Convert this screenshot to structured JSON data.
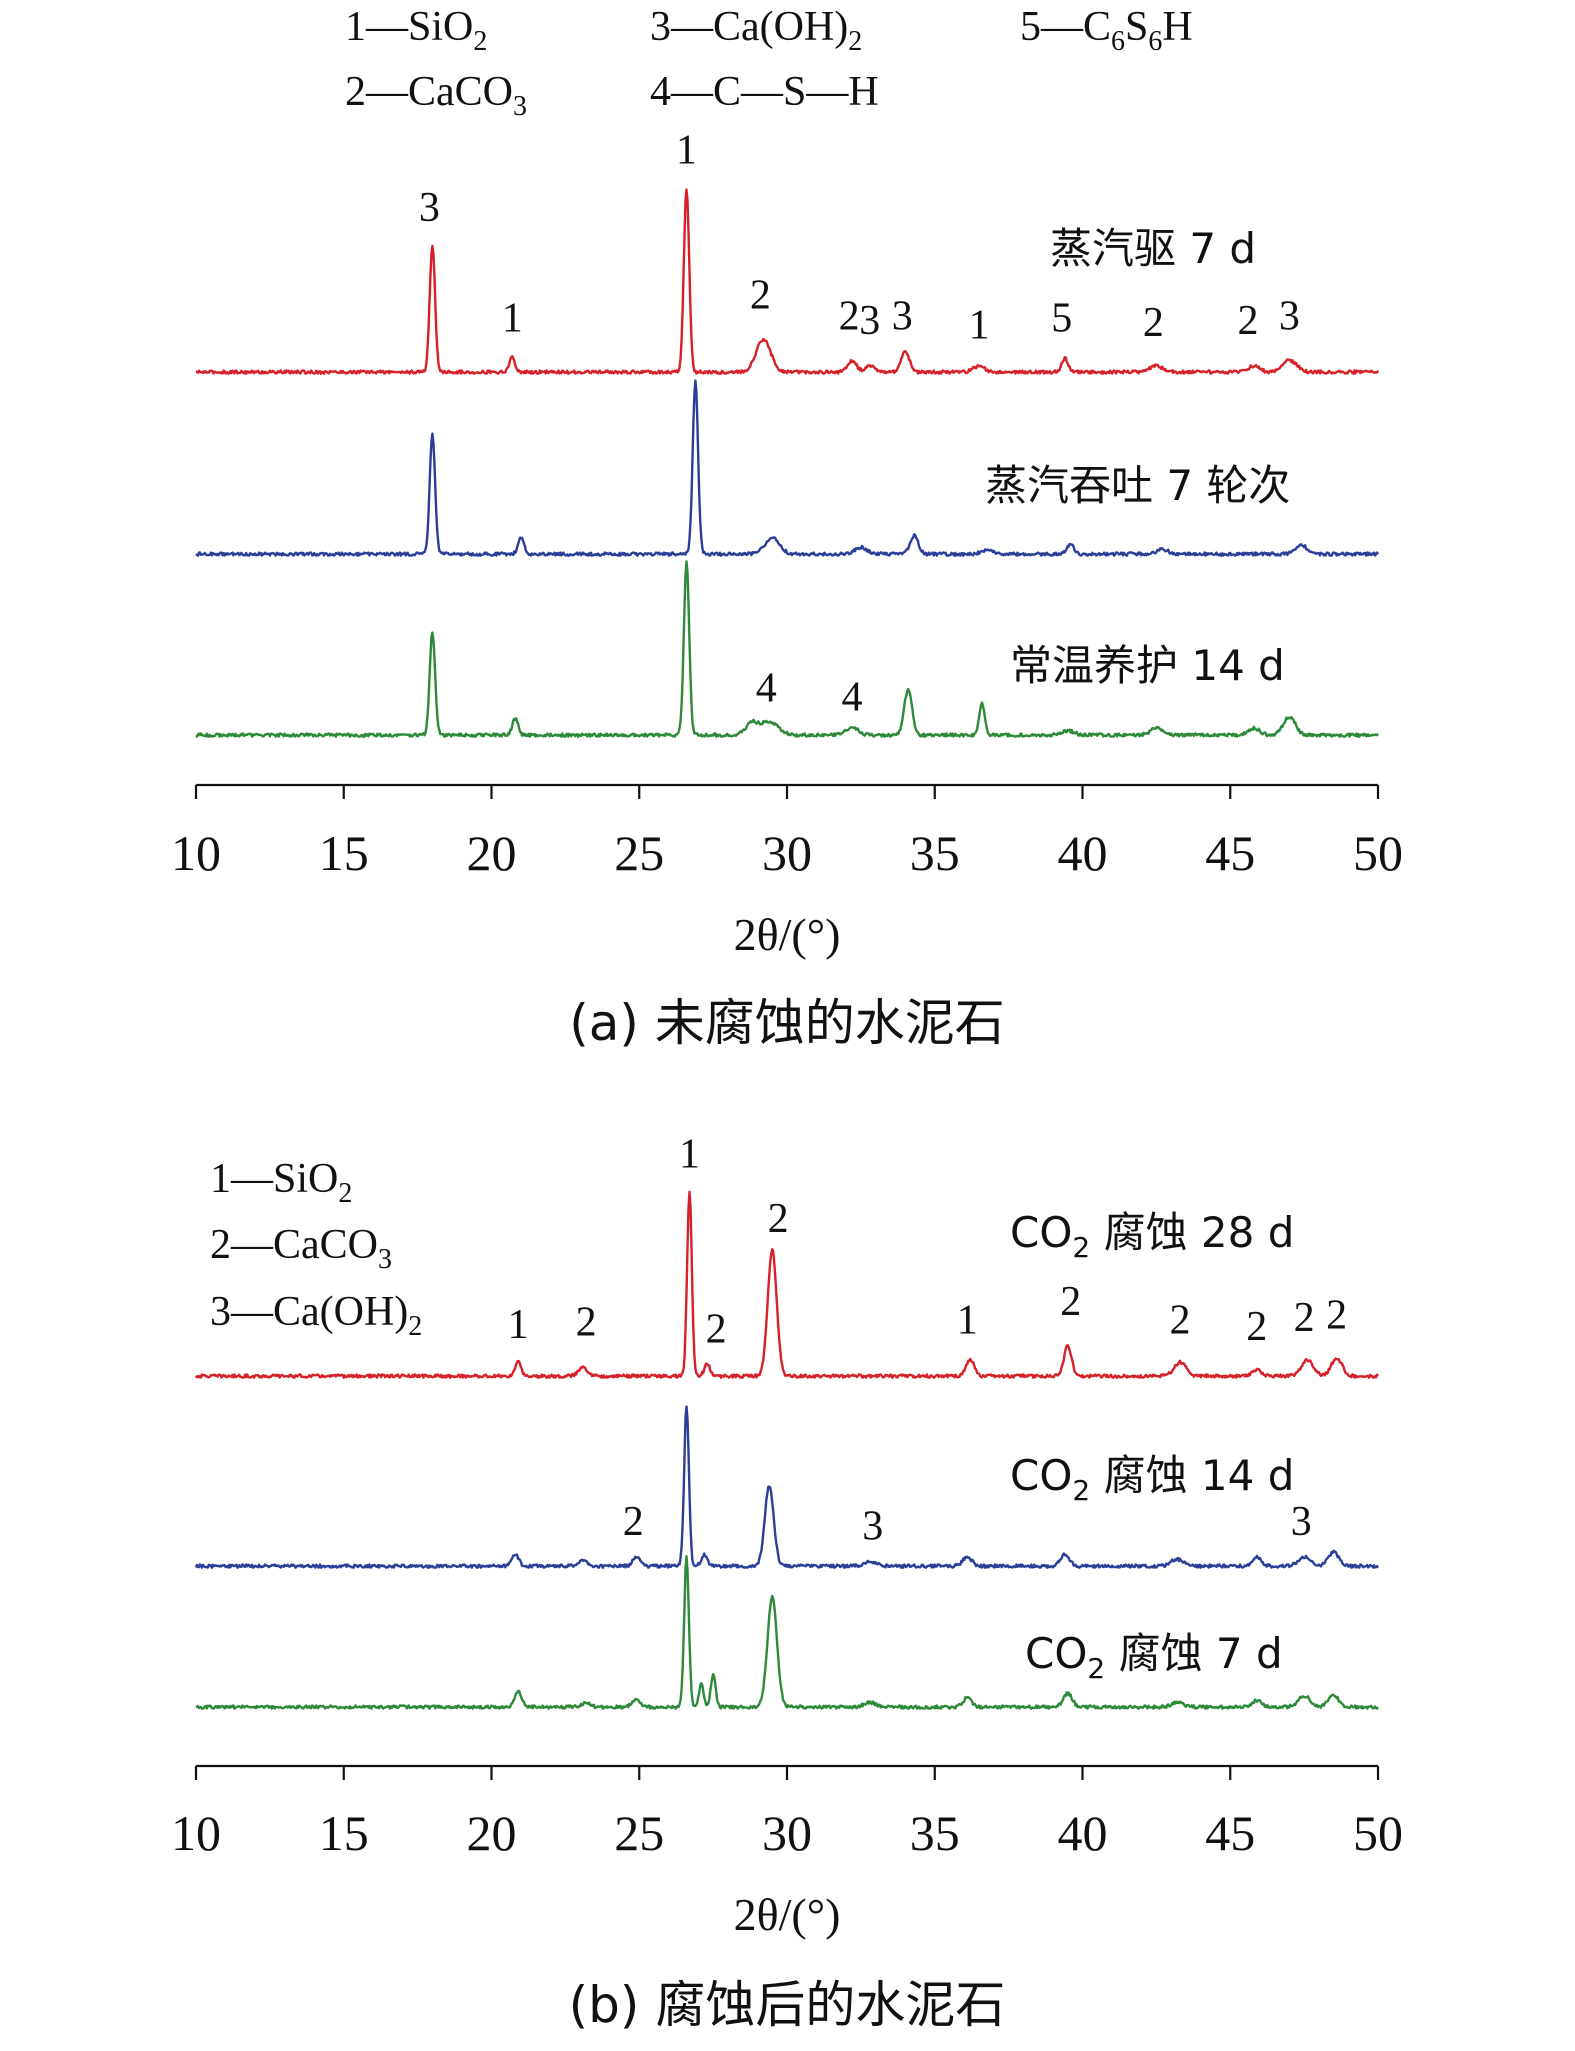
{
  "chart_data": [
    {
      "id": "a",
      "type": "line",
      "caption": "(a) 未腐蚀的水泥石",
      "xlabel": "2θ/(°)",
      "xlim": [
        10,
        50
      ],
      "x_ticks": [
        10,
        15,
        20,
        25,
        30,
        35,
        40,
        45,
        50
      ],
      "y_axis": "none",
      "grid": false,
      "legend": [
        {
          "num": "1",
          "formula": "SiO",
          "sub": "2",
          "rest": ""
        },
        {
          "num": "2",
          "formula": "CaCO",
          "sub": "3",
          "rest": ""
        },
        {
          "num": "3",
          "formula": "Ca(OH)",
          "sub": "2",
          "rest": ""
        },
        {
          "num": "4",
          "formula": "C—S—H",
          "sub": "",
          "rest": ""
        },
        {
          "num": "5",
          "formula": "C",
          "sub": "6",
          "rest": "S",
          "sub2": "6",
          "rest2": "H"
        }
      ],
      "series": [
        {
          "name": "蒸汽驱 7 d",
          "color": "#d6202a",
          "peaks": [
            [
              18.0,
              0.55,
              0.09
            ],
            [
              20.7,
              0.07,
              0.09
            ],
            [
              26.6,
              0.8,
              0.09
            ],
            [
              29.2,
              0.14,
              0.25
            ],
            [
              32.2,
              0.05,
              0.15
            ],
            [
              32.8,
              0.03,
              0.15
            ],
            [
              34.0,
              0.09,
              0.14
            ],
            [
              36.5,
              0.025,
              0.2
            ],
            [
              39.4,
              0.06,
              0.11
            ],
            [
              42.5,
              0.03,
              0.2
            ],
            [
              45.8,
              0.025,
              0.2
            ],
            [
              47.0,
              0.05,
              0.25
            ]
          ],
          "peak_labels": [
            {
              "text": "3",
              "x": 17.9,
              "y": 0.66
            },
            {
              "text": "1",
              "x": 20.7,
              "y": 0.18
            },
            {
              "text": "1",
              "x": 26.6,
              "y": 0.91
            },
            {
              "text": "2",
              "x": 29.1,
              "y": 0.28
            },
            {
              "text": "2",
              "x": 32.1,
              "y": 0.19
            },
            {
              "text": "3",
              "x": 32.8,
              "y": 0.17
            },
            {
              "text": "3",
              "x": 33.9,
              "y": 0.19
            },
            {
              "text": "1",
              "x": 36.5,
              "y": 0.15
            },
            {
              "text": "5",
              "x": 39.3,
              "y": 0.18
            },
            {
              "text": "2",
              "x": 42.4,
              "y": 0.16
            },
            {
              "text": "2",
              "x": 45.6,
              "y": 0.17
            },
            {
              "text": "3",
              "x": 47.0,
              "y": 0.19
            }
          ]
        },
        {
          "name": "蒸汽吞吐 7 轮次",
          "color": "#2b3f98",
          "peaks": [
            [
              18.0,
              0.52,
              0.09
            ],
            [
              21.0,
              0.07,
              0.1
            ],
            [
              26.9,
              0.75,
              0.09
            ],
            [
              29.5,
              0.07,
              0.25
            ],
            [
              32.5,
              0.03,
              0.2
            ],
            [
              34.3,
              0.08,
              0.14
            ],
            [
              36.8,
              0.02,
              0.2
            ],
            [
              39.6,
              0.04,
              0.12
            ],
            [
              42.7,
              0.02,
              0.2
            ],
            [
              47.4,
              0.04,
              0.2
            ]
          ],
          "peak_labels": []
        },
        {
          "name": "常温养护 14 d",
          "color": "#2e8a3a",
          "peaks": [
            [
              18.0,
              0.45,
              0.09
            ],
            [
              20.8,
              0.07,
              0.1
            ],
            [
              26.6,
              0.75,
              0.09
            ],
            [
              28.8,
              0.05,
              0.2
            ],
            [
              29.4,
              0.06,
              0.3
            ],
            [
              32.2,
              0.035,
              0.2
            ],
            [
              34.1,
              0.2,
              0.13
            ],
            [
              36.6,
              0.14,
              0.09
            ],
            [
              39.5,
              0.02,
              0.2
            ],
            [
              42.5,
              0.03,
              0.2
            ],
            [
              45.8,
              0.03,
              0.2
            ],
            [
              47.0,
              0.08,
              0.2
            ]
          ],
          "peak_labels": [
            {
              "text": "4",
              "x": 29.3,
              "y": 0.15
            },
            {
              "text": "4",
              "x": 32.2,
              "y": 0.11
            }
          ]
        }
      ]
    },
    {
      "id": "b",
      "type": "line",
      "caption": "(b) 腐蚀后的水泥石",
      "xlabel": "2θ/(°)",
      "xlim": [
        10,
        50
      ],
      "x_ticks": [
        10,
        15,
        20,
        25,
        30,
        35,
        40,
        45,
        50
      ],
      "y_axis": "none",
      "grid": false,
      "legend": [
        {
          "num": "1",
          "formula": "SiO",
          "sub": "2",
          "rest": ""
        },
        {
          "num": "2",
          "formula": "CaCO",
          "sub": "3",
          "rest": ""
        },
        {
          "num": "3",
          "formula": "Ca(OH)",
          "sub": "2",
          "rest": ""
        }
      ],
      "series": [
        {
          "name": "CO₂ 腐蚀 28 d",
          "name_parts": [
            "CO",
            "2",
            " 腐蚀 28 d"
          ],
          "color": "#d6202a",
          "peaks": [
            [
              20.9,
              0.06,
              0.1
            ],
            [
              23.1,
              0.04,
              0.15
            ],
            [
              26.7,
              0.8,
              0.08
            ],
            [
              27.3,
              0.05,
              0.1
            ],
            [
              29.5,
              0.55,
              0.15
            ],
            [
              36.2,
              0.07,
              0.14
            ],
            [
              39.5,
              0.13,
              0.13
            ],
            [
              43.3,
              0.06,
              0.2
            ],
            [
              45.9,
              0.03,
              0.15
            ],
            [
              47.6,
              0.07,
              0.2
            ],
            [
              48.6,
              0.08,
              0.18
            ]
          ],
          "peak_labels": [
            {
              "text": "1",
              "x": 20.9,
              "y": 0.17
            },
            {
              "text": "2",
              "x": 23.2,
              "y": 0.18
            },
            {
              "text": "1",
              "x": 26.7,
              "y": 0.91
            },
            {
              "text": "2",
              "x": 27.6,
              "y": 0.15
            },
            {
              "text": "2",
              "x": 29.7,
              "y": 0.63
            },
            {
              "text": "1",
              "x": 36.1,
              "y": 0.19
            },
            {
              "text": "2",
              "x": 39.6,
              "y": 0.27
            },
            {
              "text": "2",
              "x": 43.3,
              "y": 0.19
            },
            {
              "text": "2",
              "x": 45.9,
              "y": 0.16
            },
            {
              "text": "2",
              "x": 47.5,
              "y": 0.2
            },
            {
              "text": "2",
              "x": 48.6,
              "y": 0.21
            }
          ]
        },
        {
          "name": "CO₂ 腐蚀 14 d",
          "name_parts": [
            "CO",
            "2",
            " 腐蚀 14 d"
          ],
          "color": "#2b3f98",
          "peaks": [
            [
              20.8,
              0.05,
              0.12
            ],
            [
              23.1,
              0.025,
              0.15
            ],
            [
              24.9,
              0.04,
              0.12
            ],
            [
              26.6,
              0.7,
              0.08
            ],
            [
              27.2,
              0.05,
              0.1
            ],
            [
              29.4,
              0.35,
              0.15
            ],
            [
              32.8,
              0.02,
              0.2
            ],
            [
              36.1,
              0.04,
              0.15
            ],
            [
              39.4,
              0.05,
              0.15
            ],
            [
              43.2,
              0.03,
              0.2
            ],
            [
              45.9,
              0.04,
              0.15
            ],
            [
              47.5,
              0.04,
              0.2
            ],
            [
              48.5,
              0.06,
              0.18
            ]
          ],
          "peak_labels": [
            {
              "text": "2",
              "x": 24.8,
              "y": 0.14
            },
            {
              "text": "3",
              "x": 32.9,
              "y": 0.12
            },
            {
              "text": "3",
              "x": 47.4,
              "y": 0.14
            }
          ]
        },
        {
          "name": "CO₂ 腐蚀 7 d",
          "name_parts": [
            "CO",
            "2",
            " 腐蚀 7 d"
          ],
          "color": "#2e8a3a",
          "peaks": [
            [
              20.9,
              0.07,
              0.12
            ],
            [
              23.2,
              0.02,
              0.15
            ],
            [
              24.9,
              0.03,
              0.15
            ],
            [
              26.6,
              0.65,
              0.08
            ],
            [
              27.1,
              0.1,
              0.08
            ],
            [
              27.5,
              0.14,
              0.08
            ],
            [
              29.5,
              0.48,
              0.16
            ],
            [
              32.8,
              0.02,
              0.2
            ],
            [
              36.1,
              0.04,
              0.15
            ],
            [
              39.5,
              0.06,
              0.15
            ],
            [
              43.2,
              0.02,
              0.2
            ],
            [
              45.9,
              0.03,
              0.15
            ],
            [
              47.5,
              0.05,
              0.2
            ],
            [
              48.5,
              0.05,
              0.18
            ]
          ],
          "peak_labels": []
        }
      ]
    }
  ]
}
